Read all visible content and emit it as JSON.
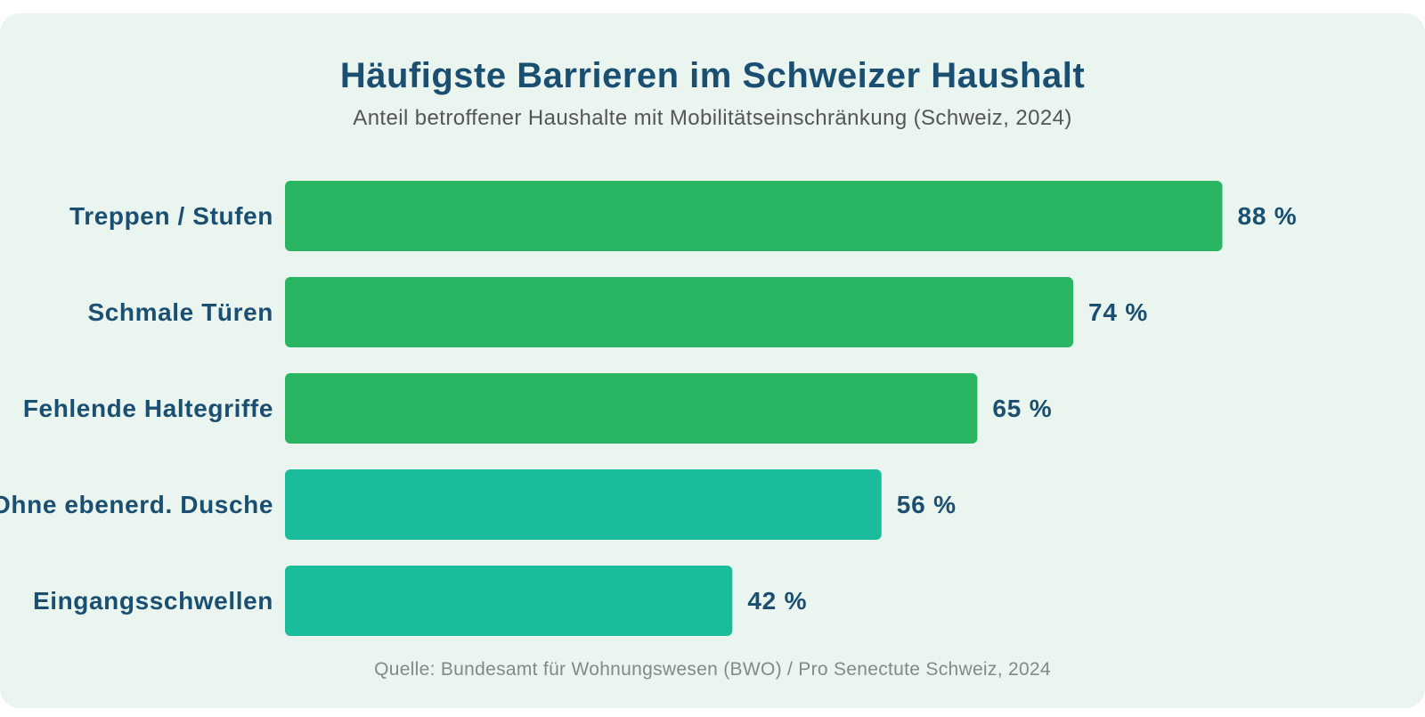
{
  "chart_data": {
    "type": "bar",
    "orientation": "horizontal",
    "title": "Häufigste Barrieren im Schweizer Haushalt",
    "subtitle": "Anteil betroffener Haushalte mit Mobilitätseinschränkung (Schweiz, 2024)",
    "categories": [
      "Treppen / Stufen",
      "Schmale Türen",
      "Fehlende Haltegriffe",
      "Ohne ebenerd. Dusche",
      "Eingangsschwellen"
    ],
    "values": [
      88,
      74,
      65,
      56,
      42
    ],
    "value_labels": [
      "88 %",
      "74 %",
      "65 %",
      "56 %",
      "42 %"
    ],
    "bar_colors": [
      "#2ab563",
      "#2ab563",
      "#2ab563",
      "#1bbc9b",
      "#1bbc9b"
    ],
    "unit": "%",
    "xlim": [
      0,
      100
    ],
    "grid": false,
    "legend": "none",
    "source": "Quelle: Bundesamt für Wohnungswesen (BWO) / Pro Senectute Schweiz, 2024"
  },
  "colors": {
    "card_background": "#e9f5ee",
    "title": "#1b4f72",
    "category_label": "#1b4f72",
    "value_label": "#1b4f72"
  }
}
